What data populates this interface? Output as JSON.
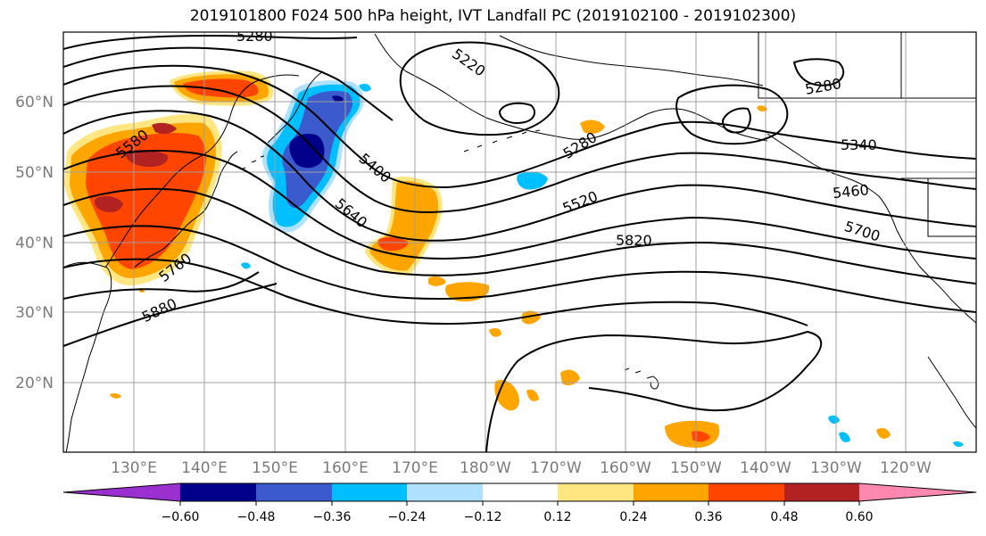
{
  "title": "2019101800 F024 500 hPa height, IVT Landfall PC (2019102100 - 2019102300)",
  "lat_labels": [
    "60°N",
    "50°N",
    "40°N",
    "30°N",
    "20°N"
  ],
  "lon_labels": [
    "130°E",
    "140°E",
    "150°E",
    "160°E",
    "170°E",
    "180°W",
    "170°W",
    "160°W",
    "150°W",
    "140°W",
    "130°W",
    "120°W"
  ],
  "contour_labels": [
    "5280",
    "5220",
    "5280",
    "5280",
    "5340",
    "5400",
    "5460",
    "5520",
    "5580",
    "5640",
    "5700",
    "5760",
    "5820",
    "5880"
  ],
  "colorbar": {
    "colors": [
      "#9b30d0",
      "#00008b",
      "#3a5acd",
      "#00bfff",
      "#b0e2ff",
      "#ffffff",
      "#ffe680",
      "#ffa500",
      "#ff4500",
      "#b22222",
      "#ff88b0"
    ],
    "tick_labels": [
      "−0.60",
      "−0.48",
      "−0.36",
      "−0.24",
      "−0.12",
      "0.12",
      "0.24",
      "0.36",
      "0.48",
      "0.60"
    ]
  }
}
